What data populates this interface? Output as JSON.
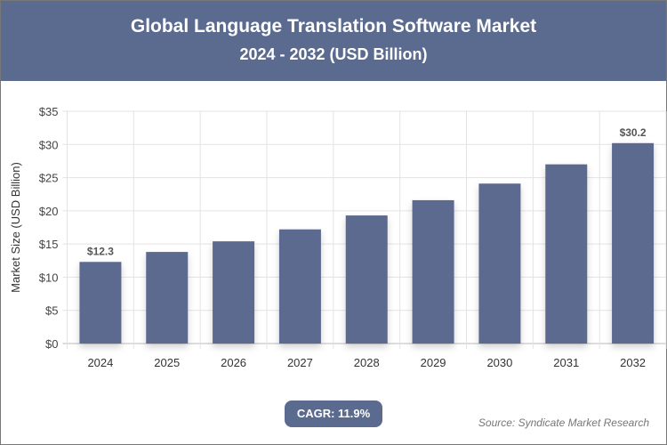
{
  "header": {
    "title": "Global Language Translation Software Market",
    "subtitle": "2024 - 2032 (USD Billion)"
  },
  "badge": {
    "cagr": "CAGR: 11.9%"
  },
  "source": "Source: Syndicate Market Research",
  "colors": {
    "bar": "#5b6a8f",
    "header": "#5b6a8f"
  },
  "chart_data": {
    "type": "bar",
    "title": "Global Language Translation Software Market",
    "subtitle": "2024 - 2032 (USD Billion)",
    "xlabel": "",
    "ylabel": "Market Size (USD Billion)",
    "categories": [
      "2024",
      "2025",
      "2026",
      "2027",
      "2028",
      "2029",
      "2030",
      "2031",
      "2032"
    ],
    "values": [
      12.3,
      13.8,
      15.4,
      17.2,
      19.3,
      21.6,
      24.1,
      27.0,
      30.2
    ],
    "data_labels": {
      "2024": "$12.3",
      "2032": "$30.2"
    },
    "ylim": [
      0,
      35
    ],
    "yticks": [
      0,
      5,
      10,
      15,
      20,
      25,
      30,
      35
    ],
    "ytick_labels": [
      "$0",
      "$5",
      "$10",
      "$15",
      "$20",
      "$25",
      "$30",
      "$35"
    ],
    "grid": true
  }
}
